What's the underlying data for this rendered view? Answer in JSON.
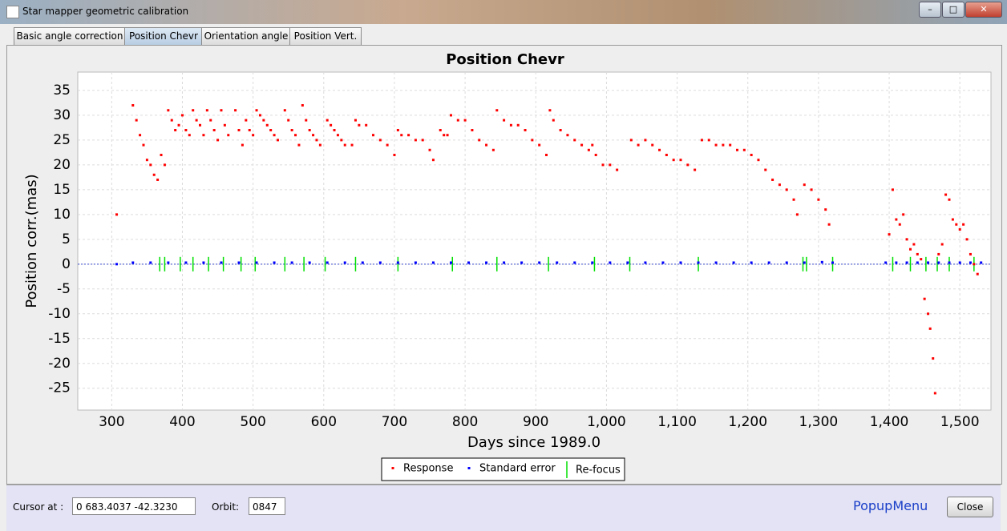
{
  "window": {
    "title": "Star mapper geometric calibration"
  },
  "tabs": [
    "Basic angle correction",
    "Position Chevr",
    "Orientation angle",
    "Position Vert."
  ],
  "chart_data": {
    "type": "scatter",
    "title": "Position Chevr",
    "x_label": "Days since 1989.0",
    "y_label": "Position corr.(mas)",
    "xlim": [
      252,
      1544
    ],
    "ylim": [
      -29.4,
      38.7
    ],
    "xticks": [
      300,
      400,
      500,
      600,
      700,
      800,
      900,
      {
        "value": 1000,
        "label": "1,000"
      },
      {
        "value": 1100,
        "label": "1,100"
      },
      {
        "value": 1200,
        "label": "1,200"
      },
      {
        "value": 1300,
        "label": "1,300"
      },
      {
        "value": 1400,
        "label": "1,400"
      },
      {
        "value": 1500,
        "label": "1,500"
      }
    ],
    "yticks": [
      -25,
      -20,
      -15,
      -10,
      -5,
      0,
      5,
      10,
      15,
      20,
      25,
      30,
      35
    ],
    "grid": true,
    "series": [
      {
        "name": "Response",
        "color": "#ff0000",
        "x": [
          307,
          330,
          335,
          340,
          345,
          350,
          355,
          360,
          365,
          370,
          375,
          380,
          385,
          390,
          395,
          400,
          405,
          410,
          415,
          420,
          425,
          430,
          435,
          440,
          445,
          450,
          455,
          460,
          465,
          475,
          480,
          485,
          490,
          495,
          500,
          505,
          510,
          515,
          520,
          525,
          530,
          535,
          545,
          550,
          555,
          560,
          565,
          570,
          575,
          580,
          585,
          590,
          595,
          605,
          610,
          615,
          620,
          625,
          630,
          640,
          645,
          650,
          660,
          670,
          680,
          690,
          700,
          705,
          710,
          720,
          730,
          740,
          750,
          755,
          765,
          770,
          775,
          780,
          790,
          800,
          810,
          820,
          830,
          840,
          845,
          855,
          865,
          875,
          885,
          895,
          905,
          915,
          920,
          925,
          935,
          945,
          955,
          965,
          975,
          980,
          985,
          995,
          1005,
          1015,
          1035,
          1045,
          1055,
          1065,
          1075,
          1085,
          1095,
          1105,
          1115,
          1125,
          1135,
          1145,
          1155,
          1165,
          1175,
          1185,
          1195,
          1205,
          1215,
          1225,
          1235,
          1245,
          1255,
          1265,
          1270,
          1280,
          1290,
          1300,
          1310,
          1315,
          1400,
          1405,
          1410,
          1415,
          1420,
          1425,
          1430,
          1435,
          1440,
          1445,
          1450,
          1455,
          1458,
          1462,
          1465,
          1470,
          1475,
          1480,
          1485,
          1490,
          1495,
          1500,
          1505,
          1510,
          1515,
          1520,
          1525
        ],
        "values": [
          10,
          32,
          29,
          26,
          24,
          21,
          20,
          18,
          17,
          22,
          20,
          31,
          29,
          27,
          28,
          30,
          27,
          26,
          31,
          29,
          28,
          26,
          31,
          29,
          27,
          25,
          31,
          28,
          26,
          31,
          27,
          24,
          29,
          27,
          26,
          31,
          30,
          29,
          28,
          27,
          26,
          25,
          31,
          29,
          27,
          26,
          24,
          32,
          29,
          27,
          26,
          25,
          24,
          29,
          28,
          27,
          26,
          25,
          24,
          24,
          29,
          28,
          28,
          26,
          25,
          24,
          22,
          27,
          26,
          26,
          25,
          25,
          23,
          21,
          27,
          26,
          26,
          30,
          29,
          29,
          27,
          25,
          24,
          23,
          31,
          29,
          28,
          28,
          27,
          25,
          24,
          22,
          31,
          29,
          27,
          26,
          25,
          24,
          23,
          24,
          22,
          20,
          20,
          19,
          25,
          24,
          25,
          24,
          23,
          22,
          21,
          21,
          20,
          19,
          25,
          25,
          24,
          24,
          24,
          23,
          23,
          22,
          21,
          19,
          17,
          16,
          15,
          13,
          10,
          16,
          15,
          13,
          11,
          8,
          6,
          15,
          9,
          8,
          10,
          5,
          3,
          4,
          2,
          1,
          -7,
          -10,
          -13,
          -19,
          -26,
          2,
          4,
          14,
          13,
          9,
          8,
          7,
          8,
          5,
          2,
          0,
          -2
        ]
      },
      {
        "name": "Standard error",
        "color": "#0000ff",
        "x": [
          307,
          330,
          355,
          380,
          405,
          430,
          455,
          480,
          505,
          530,
          555,
          580,
          605,
          630,
          655,
          680,
          705,
          730,
          755,
          780,
          805,
          830,
          855,
          880,
          905,
          930,
          955,
          980,
          1005,
          1030,
          1055,
          1080,
          1105,
          1130,
          1155,
          1180,
          1205,
          1230,
          1255,
          1280,
          1305,
          1320,
          1395,
          1410,
          1425,
          1440,
          1455,
          1470,
          1485,
          1500,
          1515,
          1530
        ],
        "values": [
          0,
          0.3,
          0.3,
          0.3,
          0.3,
          0.3,
          0.3,
          0.3,
          0.3,
          0.3,
          0.3,
          0.3,
          0.3,
          0.3,
          0.3,
          0.3,
          0.3,
          0.3,
          0.3,
          0.3,
          0.3,
          0.3,
          0.3,
          0.3,
          0.3,
          0.3,
          0.3,
          0.3,
          0.3,
          0.3,
          0.3,
          0.3,
          0.3,
          0.3,
          0.3,
          0.3,
          0.3,
          0.3,
          0.3,
          0.3,
          0.4,
          0.3,
          0.3,
          0.3,
          0.3,
          0.3,
          0.3,
          0.3,
          0.3,
          0.3,
          0.3,
          0.3
        ]
      }
    ],
    "refocus": {
      "name": "Re-focus",
      "color": "#00e000",
      "x": [
        368,
        375,
        397,
        415,
        437,
        458,
        483,
        503,
        545,
        572,
        602,
        645,
        705,
        782,
        845,
        918,
        983,
        1033,
        1130,
        1278,
        1283,
        1320,
        1405,
        1430,
        1452,
        1468,
        1485,
        1520
      ]
    }
  },
  "footer": {
    "cursor_label": "Cursor at :",
    "cursor_value": "0   683.4037  -42.3230",
    "orbit_label": "Orbit:",
    "orbit_value": "0847",
    "popup": "PopupMenu",
    "close": "Close"
  }
}
